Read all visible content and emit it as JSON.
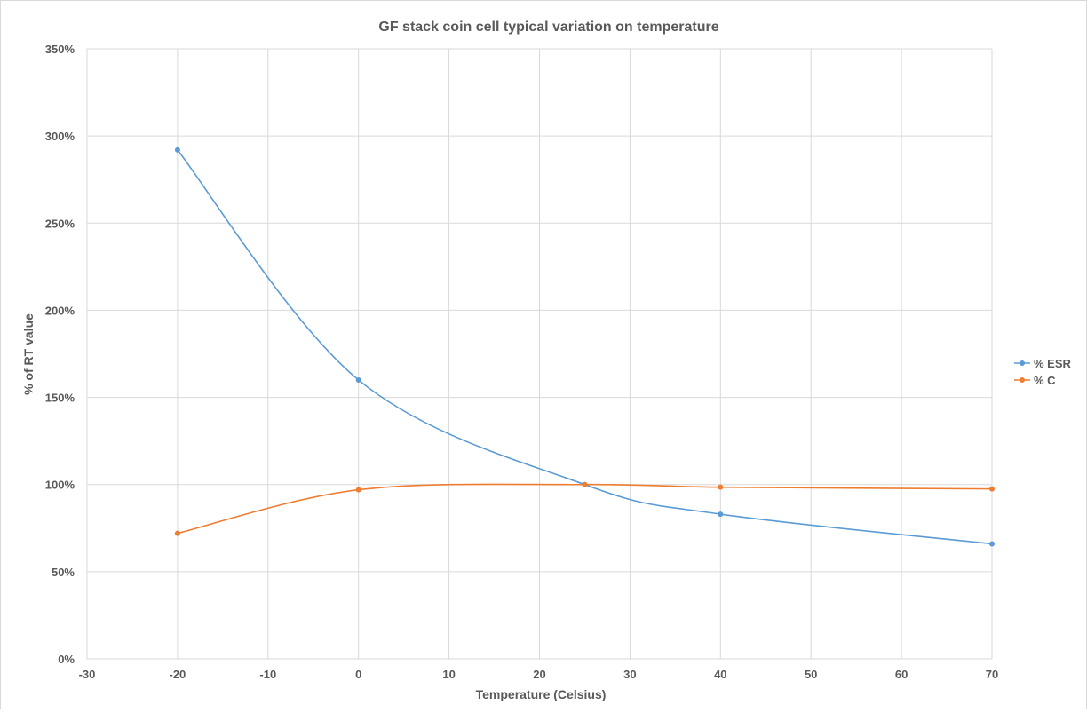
{
  "chart_data": {
    "type": "line",
    "title": "GF stack coin cell typical variation on temperature",
    "xlabel": "Temperature (Celsius)",
    "ylabel": "% of RT value",
    "xlim": [
      -30,
      70
    ],
    "ylim": [
      0,
      350
    ],
    "x_ticks": [
      -30,
      -20,
      -10,
      0,
      10,
      20,
      30,
      40,
      50,
      60,
      70
    ],
    "y_ticks": [
      0,
      50,
      100,
      150,
      200,
      250,
      300,
      350
    ],
    "x_tick_labels": [
      "-30",
      "-20",
      "-10",
      "0",
      "10",
      "20",
      "30",
      "40",
      "50",
      "60",
      "70"
    ],
    "y_tick_labels": [
      "0%",
      "50%",
      "100%",
      "150%",
      "200%",
      "250%",
      "300%",
      "350%"
    ],
    "grid": true,
    "smooth": true,
    "legend_position": "right",
    "series": [
      {
        "name": "% ESR",
        "color": "#5b9bd5",
        "x": [
          -20,
          0,
          25,
          40,
          70
        ],
        "y": [
          292,
          160,
          100,
          83,
          66
        ]
      },
      {
        "name": "% C",
        "color": "#ed7d31",
        "x": [
          -20,
          0,
          25,
          40,
          70
        ],
        "y": [
          72,
          97,
          100,
          98.5,
          97.5
        ]
      }
    ]
  }
}
